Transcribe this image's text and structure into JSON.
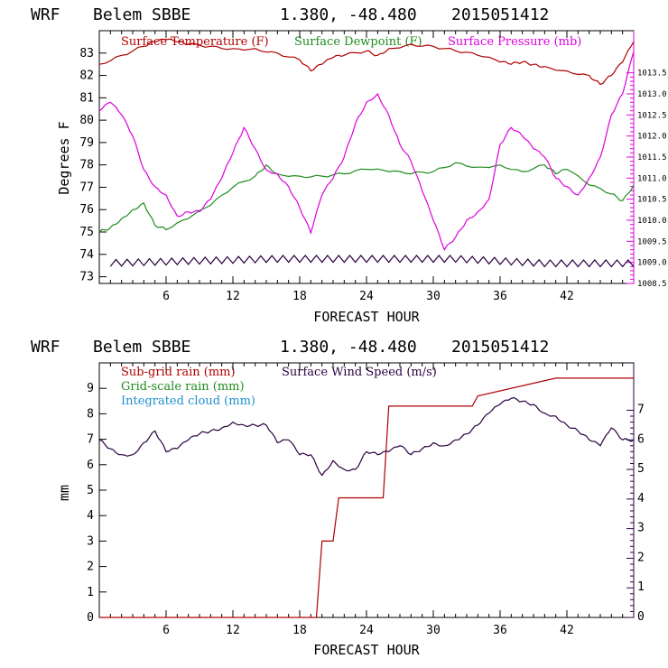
{
  "charts": [
    {
      "header": {
        "model": "WRF",
        "station": "Belem SBBE",
        "coords": "1.380, -48.480",
        "run": "2015051412"
      },
      "xlabel": "FORECAST HOUR",
      "ylabel": "Degrees F",
      "x_ticks": [
        "6",
        "12",
        "18",
        "24",
        "30",
        "36",
        "42"
      ],
      "left_ticks": [
        "73",
        "74",
        "75",
        "76",
        "77",
        "78",
        "79",
        "80",
        "81",
        "82",
        "83"
      ],
      "right_ticks": [
        "1008.5",
        "1009.0",
        "1009.5",
        "1010.0",
        "1010.5",
        "1011.0",
        "1011.5",
        "1012.0",
        "1012.5",
        "1013.0",
        "1013.5"
      ],
      "legend": [
        {
          "label": "Surface Temperature (F)",
          "color": "#b00000"
        },
        {
          "label": "Surface Dewpoint (F)",
          "color": "#1e8c1e"
        },
        {
          "label": "Surface Pressure (mb)",
          "color": "#dd00dd"
        }
      ]
    },
    {
      "header": {
        "model": "WRF",
        "station": "Belem SBBE",
        "coords": "1.380, -48.480",
        "run": "2015051412"
      },
      "xlabel": "FORECAST HOUR",
      "ylabel": "mm",
      "x_ticks": [
        "6",
        "12",
        "18",
        "24",
        "30",
        "36",
        "42"
      ],
      "left_ticks": [
        "0",
        "1",
        "2",
        "3",
        "4",
        "5",
        "6",
        "7",
        "8",
        "9"
      ],
      "right_ticks": [
        "0",
        "1",
        "2",
        "3",
        "4",
        "5",
        "6",
        "7"
      ],
      "legend": [
        {
          "label": "Sub-grid rain (mm)",
          "color": "#b00000"
        },
        {
          "label": "Grid-scale rain (mm)",
          "color": "#1e8c1e"
        },
        {
          "label": "Integrated cloud (mm)",
          "color": "#1e90d0"
        },
        {
          "label": "Surface Wind Speed (m/s)",
          "color": "#2a0040"
        }
      ]
    }
  ],
  "chart_data": [
    {
      "type": "line",
      "x_range": [
        0,
        48
      ],
      "ylim": [
        72.7,
        84
      ],
      "y2lim": [
        1008.5,
        1014.5
      ],
      "series": [
        {
          "name": "Surface Temperature (F)",
          "axis": "left",
          "color": "#b00000",
          "x": [
            0,
            2,
            4,
            5,
            6,
            7,
            8,
            10,
            12,
            14,
            16,
            18,
            19,
            20,
            21,
            22,
            24,
            25,
            26,
            28,
            30,
            32,
            34,
            36,
            37,
            38,
            39,
            40,
            42,
            44,
            45,
            46,
            47,
            48
          ],
          "y": [
            82.5,
            82.9,
            83.3,
            83.5,
            83.6,
            83.5,
            83.4,
            83.3,
            83.2,
            83.2,
            83.0,
            82.7,
            82.2,
            82.5,
            82.8,
            82.9,
            83.1,
            82.9,
            83.2,
            83.4,
            83.3,
            83.1,
            82.9,
            82.6,
            82.5,
            82.6,
            82.5,
            82.4,
            82.2,
            82.0,
            81.6,
            82.0,
            82.6,
            83.5
          ]
        },
        {
          "name": "Surface Dewpoint (F)",
          "axis": "left",
          "color": "#1e8c1e",
          "x": [
            0,
            1,
            2,
            3,
            4,
            5,
            6,
            8,
            10,
            12,
            14,
            15,
            16,
            18,
            20,
            22,
            24,
            26,
            28,
            30,
            32,
            34,
            36,
            38,
            40,
            41,
            42,
            44,
            46,
            47,
            48
          ],
          "y": [
            75.0,
            75.2,
            75.6,
            76.0,
            76.3,
            75.3,
            75.1,
            75.6,
            76.2,
            77.0,
            77.5,
            78.0,
            77.6,
            77.5,
            77.5,
            77.6,
            77.8,
            77.7,
            77.6,
            77.7,
            78.1,
            77.9,
            78.0,
            77.7,
            78.0,
            77.6,
            77.8,
            77.1,
            76.7,
            76.4,
            77.1
          ]
        },
        {
          "name": "Surface Pressure (mb)",
          "axis": "right",
          "color": "#dd00dd",
          "x": [
            0,
            1,
            2,
            3,
            4,
            5,
            6,
            7,
            8,
            9,
            10,
            11,
            12,
            13,
            14,
            15,
            16,
            17,
            18,
            19,
            20,
            21,
            22,
            23,
            24,
            25,
            26,
            27,
            28,
            29,
            30,
            31,
            32,
            33,
            34,
            35,
            36,
            37,
            38,
            39,
            40,
            41,
            42,
            43,
            44,
            45,
            46,
            47,
            48
          ],
          "y": [
            1012.6,
            1012.8,
            1012.5,
            1012.0,
            1011.2,
            1010.8,
            1010.6,
            1010.1,
            1010.2,
            1010.2,
            1010.5,
            1011.0,
            1011.6,
            1012.2,
            1011.7,
            1011.2,
            1011.1,
            1010.8,
            1010.3,
            1009.7,
            1010.6,
            1011.0,
            1011.5,
            1012.3,
            1012.8,
            1013.0,
            1012.5,
            1011.8,
            1011.4,
            1010.7,
            1010.0,
            1009.3,
            1009.6,
            1010.0,
            1010.2,
            1010.5,
            1011.8,
            1012.2,
            1012.0,
            1011.7,
            1011.5,
            1011.0,
            1010.8,
            1010.6,
            1011.0,
            1011.5,
            1012.5,
            1013.0,
            1014.0
          ]
        },
        {
          "name": "",
          "axis": "left",
          "color": "#2a0040",
          "style": "zigzag",
          "x": [
            0,
            8,
            16,
            24,
            32,
            40,
            48
          ],
          "y": [
            73.6,
            73.7,
            73.8,
            73.8,
            73.8,
            73.6,
            73.6
          ]
        }
      ]
    },
    {
      "type": "line",
      "x_range": [
        0,
        48
      ],
      "ylim": [
        0,
        10
      ],
      "y2lim": [
        0,
        8.6
      ],
      "series": [
        {
          "name": "Sub-grid rain (mm)",
          "axis": "left",
          "style": "step",
          "color": "#b00000",
          "x": [
            0,
            19.5,
            20,
            21,
            21.5,
            22,
            25.5,
            26,
            33.5,
            34,
            41,
            48
          ],
          "y": [
            0,
            0,
            3,
            3,
            4.7,
            4.7,
            4.7,
            8.3,
            8.3,
            8.7,
            9.4,
            9.4
          ]
        },
        {
          "name": "Surface Wind Speed (m/s)",
          "axis": "right",
          "color": "#2a0040",
          "x": [
            0,
            1,
            2,
            3,
            4,
            5,
            6,
            7,
            8,
            9,
            10,
            11,
            12,
            13,
            14,
            15,
            16,
            17,
            18,
            19,
            20,
            21,
            22,
            23,
            24,
            25,
            26,
            27,
            28,
            29,
            30,
            31,
            32,
            33,
            34,
            35,
            36,
            37,
            38,
            39,
            40,
            41,
            42,
            43,
            44,
            45,
            46,
            47,
            48
          ],
          "y": [
            6.0,
            5.7,
            5.5,
            5.5,
            5.9,
            6.3,
            5.6,
            5.7,
            6.0,
            6.2,
            6.3,
            6.4,
            6.6,
            6.5,
            6.5,
            6.5,
            5.9,
            6.0,
            5.5,
            5.5,
            4.8,
            5.3,
            5.0,
            5.0,
            5.6,
            5.5,
            5.6,
            5.8,
            5.5,
            5.7,
            5.9,
            5.8,
            6.0,
            6.2,
            6.5,
            6.9,
            7.2,
            7.4,
            7.3,
            7.2,
            6.9,
            6.8,
            6.5,
            6.3,
            6.0,
            5.8,
            6.4,
            6.0,
            6.0
          ]
        }
      ]
    }
  ]
}
